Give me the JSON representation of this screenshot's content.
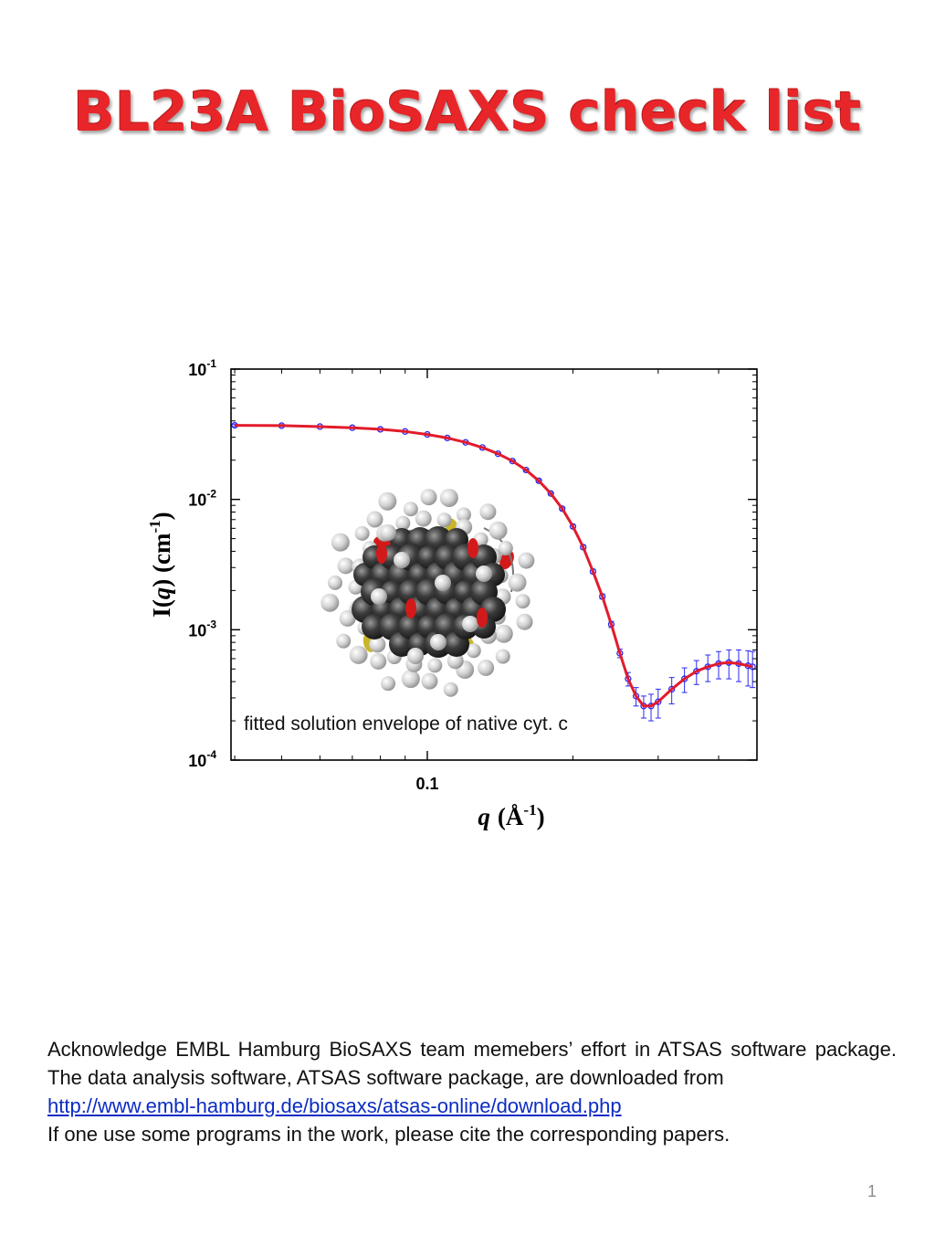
{
  "title": "BL23A BioSAXS check list",
  "chart_data": {
    "type": "scatter",
    "title": "",
    "xlabel": "q (Å-1)",
    "xlabel_parts": {
      "var": "q",
      "unit": "(Å",
      "sup": "-1",
      "close": ")"
    },
    "ylabel": "I(q) (cm-1)",
    "ylabel_parts": {
      "pre": "I(",
      "var": "q",
      "mid": ") (cm",
      "sup": "-1",
      "close": ")"
    },
    "x_scale": "log",
    "y_scale": "log",
    "xlim": [
      0.0393,
      0.48
    ],
    "ylim": [
      0.0001,
      0.1
    ],
    "x_ticks": [
      {
        "value": 0.1,
        "label": "0.1"
      }
    ],
    "y_ticks": [
      {
        "value": 0.1,
        "base": "10",
        "exp": "-1"
      },
      {
        "value": 0.01,
        "base": "10",
        "exp": "-2"
      },
      {
        "value": 0.001,
        "base": "10",
        "exp": "-3"
      },
      {
        "value": 0.0001,
        "base": "10",
        "exp": "-4"
      }
    ],
    "grid": false,
    "series": [
      {
        "kind": "data",
        "color": "#2a2af0",
        "x": [
          0.04,
          0.05,
          0.06,
          0.07,
          0.08,
          0.09,
          0.1,
          0.11,
          0.12,
          0.13,
          0.14,
          0.15,
          0.16,
          0.17,
          0.18,
          0.19,
          0.2,
          0.21,
          0.22,
          0.23,
          0.24,
          0.25,
          0.26,
          0.27,
          0.28,
          0.29,
          0.3,
          0.32,
          0.34,
          0.36,
          0.38,
          0.4,
          0.42,
          0.44,
          0.46,
          0.47
        ],
        "y": [
          0.037,
          0.0368,
          0.0362,
          0.0355,
          0.0345,
          0.0332,
          0.0315,
          0.0296,
          0.0274,
          0.025,
          0.0224,
          0.0197,
          0.0168,
          0.0139,
          0.0111,
          0.0085,
          0.0062,
          0.0043,
          0.0028,
          0.0018,
          0.0011,
          0.00066,
          0.00042,
          0.00031,
          0.00026,
          0.00026,
          0.00028,
          0.00035,
          0.00042,
          0.00048,
          0.00052,
          0.00055,
          0.00056,
          0.00055,
          0.00053,
          0.00052
        ],
        "err": [
          0.0008,
          0.0007,
          0.0006,
          0.0005,
          0.0005,
          0.0004,
          0.0004,
          0.0004,
          0.0004,
          0.0003,
          0.0003,
          0.0003,
          0.0003,
          0.0003,
          0.0002,
          0.0002,
          0.0002,
          0.00015,
          0.0001,
          8e-05,
          6e-05,
          5e-05,
          5e-05,
          5e-05,
          5e-05,
          6e-05,
          7e-05,
          8e-05,
          9e-05,
          0.0001,
          0.00012,
          0.00013,
          0.00014,
          0.00015,
          0.00016,
          0.00016
        ]
      },
      {
        "kind": "fit",
        "color": "#e21b2c",
        "x": [
          0.04,
          0.05,
          0.06,
          0.07,
          0.08,
          0.09,
          0.1,
          0.11,
          0.12,
          0.13,
          0.14,
          0.15,
          0.16,
          0.17,
          0.18,
          0.19,
          0.2,
          0.21,
          0.22,
          0.23,
          0.24,
          0.25,
          0.26,
          0.27,
          0.28,
          0.29,
          0.3,
          0.32,
          0.34,
          0.36,
          0.38,
          0.4,
          0.42,
          0.44,
          0.46,
          0.47
        ],
        "y": [
          0.037,
          0.0368,
          0.0362,
          0.0355,
          0.0345,
          0.0332,
          0.0315,
          0.0296,
          0.0274,
          0.025,
          0.0224,
          0.0197,
          0.0168,
          0.0139,
          0.0111,
          0.0085,
          0.0062,
          0.0043,
          0.0028,
          0.0018,
          0.0011,
          0.00066,
          0.00042,
          0.00031,
          0.00026,
          0.00026,
          0.00028,
          0.00035,
          0.00042,
          0.00048,
          0.00052,
          0.00055,
          0.00056,
          0.00055,
          0.00053,
          0.00052
        ]
      }
    ],
    "inset": {
      "caption": "fitted solution envelope of native cyt. c",
      "atom_colors": [
        "#3a3a3a",
        "#d6d6d6",
        "#d31a1a",
        "#c9b52a"
      ]
    }
  },
  "acknowledgement": {
    "line1": "Acknowledge EMBL Hamburg BioSAXS team memebers’ effort in ATSAS software package. The data analysis software, ATSAS software package, are downloaded from",
    "link": "http://www.embl-hamburg.de/biosaxs/atsas-online/download.php",
    "line2": "If one use some programs in the work, please cite the corresponding papers."
  },
  "page_number": "1"
}
